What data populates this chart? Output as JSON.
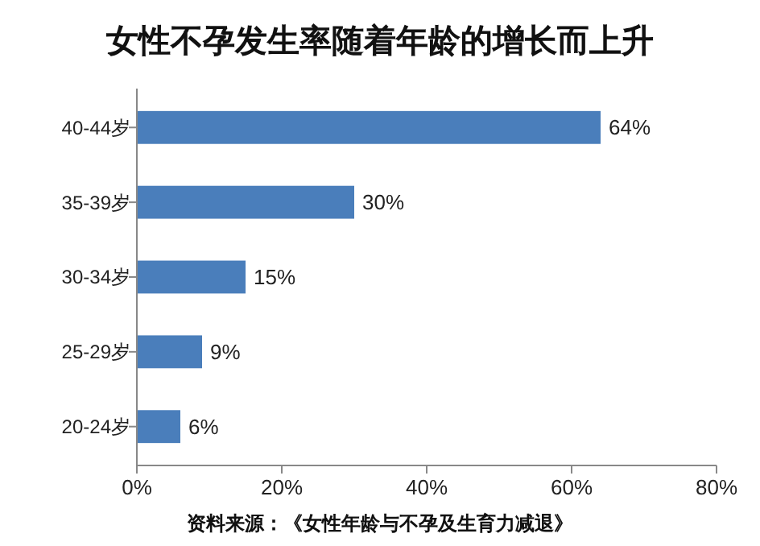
{
  "chart_data": {
    "type": "bar",
    "orientation": "horizontal",
    "title": "女性不孕发生率随着年龄的增长而上升",
    "categories": [
      "40-44岁",
      "35-39岁",
      "30-34岁",
      "25-29岁",
      "20-24岁"
    ],
    "values": [
      64,
      30,
      15,
      9,
      6
    ],
    "value_labels": [
      "64%",
      "30%",
      "15%",
      "9%",
      "6%"
    ],
    "color": "#4a7ebb",
    "xlim": [
      0,
      80
    ],
    "xticks": [
      {
        "value": 0,
        "label": "0%"
      },
      {
        "value": 20,
        "label": "20%"
      },
      {
        "value": 40,
        "label": "40%"
      },
      {
        "value": 60,
        "label": "60%"
      },
      {
        "value": 80,
        "label": "80%"
      }
    ],
    "grid": false,
    "annotations": [
      "资料来源：《女性年龄与不孕及生育力减退》"
    ]
  }
}
